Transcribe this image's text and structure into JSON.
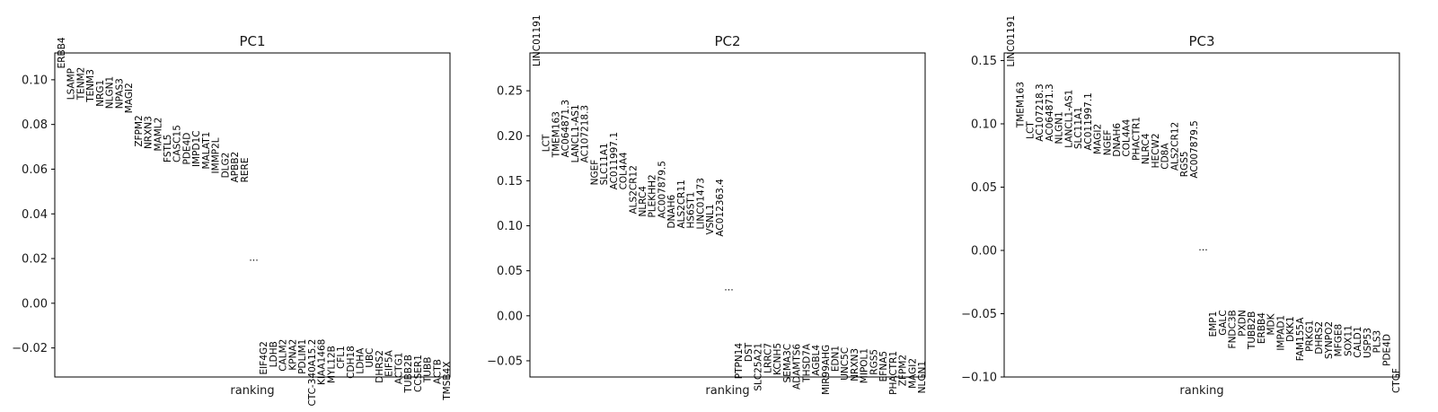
{
  "chart_data": [
    {
      "type": "scatter",
      "title": "PC1",
      "xlabel": "ranking",
      "ylim": [
        -0.033,
        0.112
      ],
      "yticks": [
        -0.02,
        0.0,
        0.02,
        0.04,
        0.06,
        0.08,
        0.1
      ],
      "yticklabels": [
        "−0.02",
        "0.00",
        "0.02",
        "0.04",
        "0.06",
        "0.08",
        "0.10"
      ],
      "ellipsis": "...",
      "ellipsis_y": 0.019,
      "top_genes": [
        {
          "name": "ERBB4",
          "y": 0.105
        },
        {
          "name": "LSAMP",
          "y": 0.091
        },
        {
          "name": "TENM2",
          "y": 0.091
        },
        {
          "name": "TENM3",
          "y": 0.09
        },
        {
          "name": "NRG1",
          "y": 0.088
        },
        {
          "name": "NLGN1",
          "y": 0.087
        },
        {
          "name": "NPAS3",
          "y": 0.087
        },
        {
          "name": "MAGI2",
          "y": 0.085
        },
        {
          "name": "ZFPM2",
          "y": 0.07
        },
        {
          "name": "NRXN3",
          "y": 0.069
        },
        {
          "name": "MAML2",
          "y": 0.068
        },
        {
          "name": "FSTL5",
          "y": 0.063
        },
        {
          "name": "CASC15",
          "y": 0.063
        },
        {
          "name": "PDE4D",
          "y": 0.062
        },
        {
          "name": "IMPD1C",
          "y": 0.061
        },
        {
          "name": "MALAT1",
          "y": 0.06
        },
        {
          "name": "IMMP2L",
          "y": 0.058
        },
        {
          "name": "DLG2",
          "y": 0.056
        },
        {
          "name": "APBB2",
          "y": 0.054
        },
        {
          "name": "RERE",
          "y": 0.054
        }
      ],
      "bottom_genes": [
        {
          "name": "EIF4G2",
          "y": -0.017
        },
        {
          "name": "LDHB",
          "y": -0.017
        },
        {
          "name": "CALM2",
          "y": -0.016
        },
        {
          "name": "KPNA2",
          "y": -0.016
        },
        {
          "name": "PDLIM1",
          "y": -0.016
        },
        {
          "name": "CTC-340A15.2",
          "y": -0.016
        },
        {
          "name": "KIAA1468",
          "y": -0.016
        },
        {
          "name": "MYL12B",
          "y": -0.019
        },
        {
          "name": "CFL1",
          "y": -0.019
        },
        {
          "name": "CDH18",
          "y": -0.019
        },
        {
          "name": "LDHA",
          "y": -0.02
        },
        {
          "name": "UBC",
          "y": -0.02
        },
        {
          "name": "DHRS2",
          "y": -0.021
        },
        {
          "name": "EIF5A",
          "y": -0.021
        },
        {
          "name": "ACTG1",
          "y": -0.022
        },
        {
          "name": "TUBB2B",
          "y": -0.023
        },
        {
          "name": "CCSER1",
          "y": -0.023
        },
        {
          "name": "TUBB",
          "y": -0.024
        },
        {
          "name": "ACTB",
          "y": -0.025
        },
        {
          "name": "TMSB4X",
          "y": -0.026
        }
      ]
    },
    {
      "type": "scatter",
      "title": "PC2",
      "xlabel": "ranking",
      "ylim": [
        -0.068,
        0.292
      ],
      "yticks": [
        -0.05,
        0.0,
        0.05,
        0.1,
        0.15,
        0.2,
        0.25
      ],
      "yticklabels": [
        "−0.05",
        "0.00",
        "0.05",
        "0.10",
        "0.15",
        "0.20",
        "0.25"
      ],
      "ellipsis": "...",
      "ellipsis_y": 0.028,
      "top_genes": [
        {
          "name": "LINC01191",
          "y": 0.277
        },
        {
          "name": "LCT",
          "y": 0.182
        },
        {
          "name": "TMEM163",
          "y": 0.176
        },
        {
          "name": "AC064871.3",
          "y": 0.176
        },
        {
          "name": "LANCL1-AS1",
          "y": 0.17
        },
        {
          "name": "AC107218.3",
          "y": 0.17
        },
        {
          "name": "NGEF",
          "y": 0.145
        },
        {
          "name": "SLC11A1",
          "y": 0.145
        },
        {
          "name": "AC011997.1",
          "y": 0.14
        },
        {
          "name": "COL4A4",
          "y": 0.14
        },
        {
          "name": "ALS2CR12",
          "y": 0.113
        },
        {
          "name": "NLRC4",
          "y": 0.11
        },
        {
          "name": "PLEKHH2",
          "y": 0.109
        },
        {
          "name": "AC007879.5",
          "y": 0.108
        },
        {
          "name": "DNAH6",
          "y": 0.097
        },
        {
          "name": "ALS2CR11",
          "y": 0.097
        },
        {
          "name": "HS6ST1",
          "y": 0.097
        },
        {
          "name": "LINC01473",
          "y": 0.096
        },
        {
          "name": "VSNL1",
          "y": 0.09
        },
        {
          "name": "AC012363.4",
          "y": 0.088
        }
      ],
      "bottom_genes": [
        {
          "name": "PTPN14",
          "y": -0.03
        },
        {
          "name": "DST",
          "y": -0.03
        },
        {
          "name": "SLC25A21",
          "y": -0.03
        },
        {
          "name": "LRRC7",
          "y": -0.03
        },
        {
          "name": "KCNH5",
          "y": -0.03
        },
        {
          "name": "SEMA3C",
          "y": -0.031
        },
        {
          "name": "ADAMTS6",
          "y": -0.031
        },
        {
          "name": "THSD7A",
          "y": -0.031
        },
        {
          "name": "AGBL4",
          "y": -0.032
        },
        {
          "name": "MIR99AHG",
          "y": -0.032
        },
        {
          "name": "EDN1",
          "y": -0.033
        },
        {
          "name": "UNC5C",
          "y": -0.035
        },
        {
          "name": "NRXN3",
          "y": -0.036
        },
        {
          "name": "MIPOL1",
          "y": -0.036
        },
        {
          "name": "RGS5",
          "y": -0.037
        },
        {
          "name": "EFNA5",
          "y": -0.039
        },
        {
          "name": "PHACTR1",
          "y": -0.039
        },
        {
          "name": "ZFPM2",
          "y": -0.043
        },
        {
          "name": "MAGI2",
          "y": -0.047
        },
        {
          "name": "NLGN1",
          "y": -0.05
        }
      ]
    },
    {
      "type": "scatter",
      "title": "PC3",
      "xlabel": "ranking",
      "ylim": [
        -0.1,
        0.156
      ],
      "yticks": [
        -0.1,
        -0.05,
        0.0,
        0.05,
        0.1,
        0.15
      ],
      "yticklabels": [
        "−0.10",
        "−0.05",
        "0.00",
        "0.05",
        "0.10",
        "0.15"
      ],
      "ellipsis": "...",
      "ellipsis_y": 0.0,
      "top_genes": [
        {
          "name": "LINC01191",
          "y": 0.145
        },
        {
          "name": "TMEM163",
          "y": 0.097
        },
        {
          "name": "LCT",
          "y": 0.088
        },
        {
          "name": "AC107218.3",
          "y": 0.086
        },
        {
          "name": "AC064871.3",
          "y": 0.086
        },
        {
          "name": "NLGN1",
          "y": 0.084
        },
        {
          "name": "LANCL1-AS1",
          "y": 0.081
        },
        {
          "name": "SLC11A1",
          "y": 0.08
        },
        {
          "name": "AC011997.1",
          "y": 0.079
        },
        {
          "name": "MAGI2",
          "y": 0.076
        },
        {
          "name": "NGEF",
          "y": 0.075
        },
        {
          "name": "DNAH6",
          "y": 0.074
        },
        {
          "name": "COL4A4",
          "y": 0.074
        },
        {
          "name": "PHACTR1",
          "y": 0.071
        },
        {
          "name": "NLRC4",
          "y": 0.068
        },
        {
          "name": "HECW2",
          "y": 0.065
        },
        {
          "name": "CD8A",
          "y": 0.064
        },
        {
          "name": "ALS2CR12",
          "y": 0.063
        },
        {
          "name": "RGS5",
          "y": 0.058
        },
        {
          "name": "AC007879.5",
          "y": 0.057
        }
      ],
      "bottom_genes": [
        {
          "name": "EMP1",
          "y": -0.048
        },
        {
          "name": "GALC",
          "y": -0.047
        },
        {
          "name": "FNDC3B",
          "y": -0.047
        },
        {
          "name": "PXDN",
          "y": -0.047
        },
        {
          "name": "TUBB2B",
          "y": -0.048
        },
        {
          "name": "ERBB4",
          "y": -0.049
        },
        {
          "name": "MDK",
          "y": -0.05
        },
        {
          "name": "IMPAD1",
          "y": -0.051
        },
        {
          "name": "DKK1",
          "y": -0.052
        },
        {
          "name": "FAM155A",
          "y": -0.053
        },
        {
          "name": "PRKG1",
          "y": -0.055
        },
        {
          "name": "DHRS2",
          "y": -0.056
        },
        {
          "name": "SYNPO2",
          "y": -0.056
        },
        {
          "name": "MFGE8",
          "y": -0.058
        },
        {
          "name": "SOX11",
          "y": -0.059
        },
        {
          "name": "CALD1",
          "y": -0.06
        },
        {
          "name": "USP53",
          "y": -0.061
        },
        {
          "name": "PLS3",
          "y": -0.063
        },
        {
          "name": "PDE4D",
          "y": -0.066
        },
        {
          "name": "CTGF",
          "y": -0.093
        }
      ]
    }
  ]
}
